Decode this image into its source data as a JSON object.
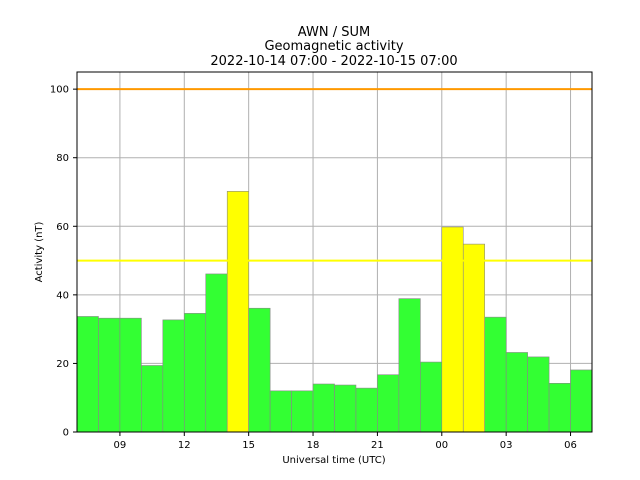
{
  "chart_data": {
    "type": "bar",
    "title_lines": [
      "AWN / SUM",
      "Geomagnetic activity",
      "2022-10-14 07:00 - 2022-10-15 07:00"
    ],
    "xlabel": "Universal time (UTC)",
    "ylabel": "Activity (nT)",
    "x_range_hours": [
      7,
      31
    ],
    "ylim": [
      0,
      105
    ],
    "grid": true,
    "x_ticks": [
      {
        "hour": 9,
        "label": "09"
      },
      {
        "hour": 12,
        "label": "12"
      },
      {
        "hour": 15,
        "label": "15"
      },
      {
        "hour": 18,
        "label": "18"
      },
      {
        "hour": 21,
        "label": "21"
      },
      {
        "hour": 24,
        "label": "00"
      },
      {
        "hour": 27,
        "label": "03"
      },
      {
        "hour": 30,
        "label": "06"
      }
    ],
    "y_ticks": [
      0,
      20,
      40,
      60,
      80,
      100
    ],
    "thresholds": [
      {
        "value": 100,
        "color": "#ff9900"
      },
      {
        "value": 50,
        "color": "#ffff00"
      }
    ],
    "colors": {
      "low": "#33ff33",
      "elevated": "#ffff00",
      "grid": "#b0b0b0",
      "bar_edge": "#888888"
    },
    "bars": [
      {
        "start": "07:00",
        "value": 33.7
      },
      {
        "start": "08:00",
        "value": 33.2
      },
      {
        "start": "09:00",
        "value": 33.2
      },
      {
        "start": "10:00",
        "value": 19.4
      },
      {
        "start": "11:00",
        "value": 32.7
      },
      {
        "start": "12:00",
        "value": 34.6
      },
      {
        "start": "13:00",
        "value": 46.1
      },
      {
        "start": "14:00",
        "value": 70.2
      },
      {
        "start": "15:00",
        "value": 36.1
      },
      {
        "start": "16:00",
        "value": 12.0
      },
      {
        "start": "17:00",
        "value": 12.0
      },
      {
        "start": "18:00",
        "value": 14.0
      },
      {
        "start": "19:00",
        "value": 13.7
      },
      {
        "start": "20:00",
        "value": 12.8
      },
      {
        "start": "21:00",
        "value": 16.7
      },
      {
        "start": "22:00",
        "value": 38.9
      },
      {
        "start": "23:00",
        "value": 20.4
      },
      {
        "start": "00:00",
        "value": 59.8
      },
      {
        "start": "01:00",
        "value": 54.8
      },
      {
        "start": "02:00",
        "value": 33.5
      },
      {
        "start": "03:00",
        "value": 23.2
      },
      {
        "start": "04:00",
        "value": 21.9
      },
      {
        "start": "05:00",
        "value": 14.2
      },
      {
        "start": "06:00",
        "value": 18.1
      }
    ]
  }
}
